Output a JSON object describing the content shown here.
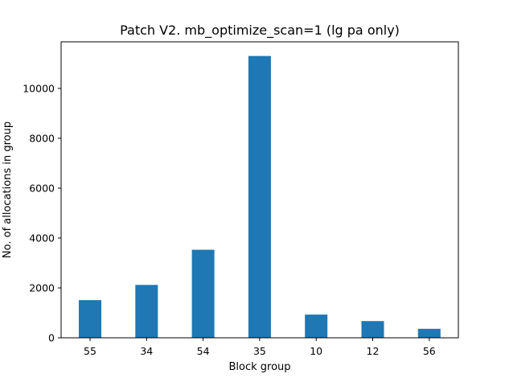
{
  "chart_data": {
    "type": "bar",
    "title": "Patch V2. mb_optimize_scan=1 (lg pa only)",
    "xlabel": "Block group",
    "ylabel": "No. of allocations in group",
    "categories": [
      "55",
      "34",
      "54",
      "35",
      "10",
      "12",
      "56"
    ],
    "values": [
      1510,
      2120,
      3530,
      11300,
      930,
      670,
      360
    ],
    "ylim": [
      0,
      11868
    ],
    "yticks": [
      0,
      2000,
      4000,
      6000,
      8000,
      10000
    ],
    "grid": false,
    "legend": "none",
    "bar_color": "#1f77b4"
  }
}
